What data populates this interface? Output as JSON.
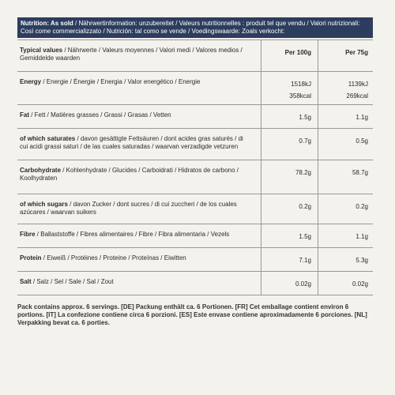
{
  "header": {
    "bold": "Nutrition: As sold",
    "text": " / Nährwertinformation: unzubereitet / Valeurs nutritionnelles : produit tel que vendu / Valori nutrizionali: Così come commercializzato / Nutrición: tal como se vende / Voedingswaarde: Zoals verkocht:"
  },
  "table": {
    "columns": [
      {
        "bold": "Typical values",
        "text": " / Nährwerte / Valeurs moyennes / Valori medi / Valores medios / Gemiddelde waarden"
      },
      "Per 100g",
      "Per 75g"
    ],
    "rows": [
      {
        "bold": "Energy",
        "text": " / Energie / Énergie / Energia / Valor energético / Energie",
        "per_100g": [
          "1518kJ",
          "358kcal"
        ],
        "per_75g": [
          "1139kJ",
          "269kcal"
        ]
      },
      {
        "bold": "Fat",
        "text": " / Fett / Matières grasses / Grassi / Grasas / Vetten",
        "per_100g": [
          "1.5g"
        ],
        "per_75g": [
          "1.1g"
        ]
      },
      {
        "bold": "of which saturates",
        "text": " / davon gesättigte Fettsäuren / dont acides gras saturés / di cui acidi grassi saturi / de las cuales saturadas / waarvan verzadigde vetzuren",
        "per_100g": [
          "0.7g"
        ],
        "per_75g": [
          "0.5g"
        ]
      },
      {
        "bold": "Carbohydrate",
        "text": " / Kohlenhydrate / Glucides / Carboidrati / Hidratos de carbono / Koolhydraten",
        "per_100g": [
          "78.2g"
        ],
        "per_75g": [
          "58.7g"
        ]
      },
      {
        "bold": "of which sugars",
        "text": " / davon Zucker / dont sucres / di cui zuccheri / de los cuales azúcares / waarvan suikers",
        "per_100g": [
          "0.2g"
        ],
        "per_75g": [
          "0.2g"
        ]
      },
      {
        "bold": "Fibre",
        "text": " / Ballaststoffe / Fibres alimentaires / Fibre / Fibra alimentaria / Vezels",
        "per_100g": [
          "1.5g"
        ],
        "per_75g": [
          "1.1g"
        ]
      },
      {
        "bold": "Protein",
        "text": " / Eiweiß / Protéines / Proteine / Proteínas / Eiwitten",
        "per_100g": [
          "7.1g"
        ],
        "per_75g": [
          "5.3g"
        ]
      },
      {
        "bold": "Salt",
        "text": " / Salz / Sel / Sale / Sal / Zout",
        "per_100g": [
          "0.02g"
        ],
        "per_75g": [
          "0.02g"
        ]
      }
    ]
  },
  "footer": "Pack contains approx. 6 servings. [DE] Packung enthält ca. 6 Portionen. [FR] Cet emballage contient environ 6 portions. [IT] La confezione contiene circa 6 porzioni. [ES] Este envase contiene aproximadamente 6 porciones. [NL] Verpakking bevat ca. 6 porties."
}
